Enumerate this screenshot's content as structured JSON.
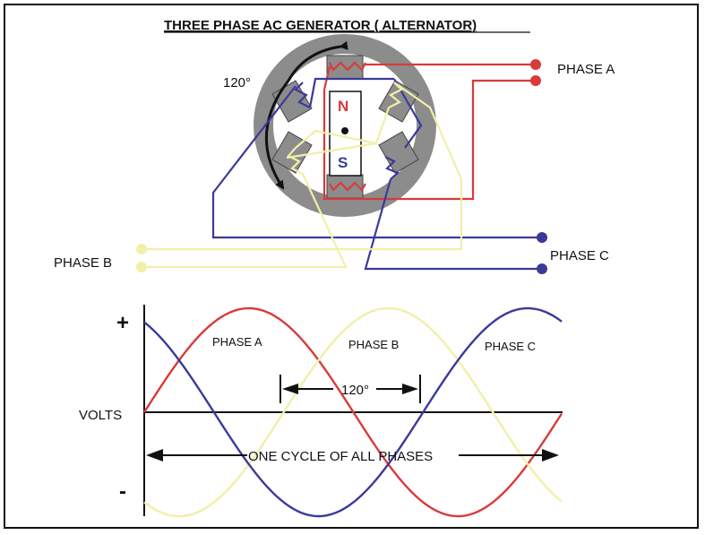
{
  "title": "THREE PHASE AC GENERATOR  ( ALTERNATOR)",
  "generator": {
    "angle_label": "120°",
    "north_label": "N",
    "south_label": "S"
  },
  "terminals": {
    "phase_a": "PHASE A",
    "phase_b": "PHASE B",
    "phase_c": "PHASE C"
  },
  "waveform": {
    "plus_label": "+",
    "minus_label": "-",
    "volts_label": "VOLTS",
    "phase_shift_label": "120°",
    "cycle_label": "ONE CYCLE OF ALL PHASES",
    "series": [
      {
        "name": "PHASE A",
        "color": "#d93a3a",
        "phase_deg": 0
      },
      {
        "name": "PHASE B",
        "color": "#f0f0a8",
        "phase_deg": 120
      },
      {
        "name": "PHASE C",
        "color": "#3a3a9a",
        "phase_deg": 240
      }
    ]
  },
  "colors": {
    "phase_a": "#d93a3a",
    "phase_b": "#f0f0a8",
    "phase_c": "#3a3a9a",
    "stator": "#8c8c8c"
  }
}
